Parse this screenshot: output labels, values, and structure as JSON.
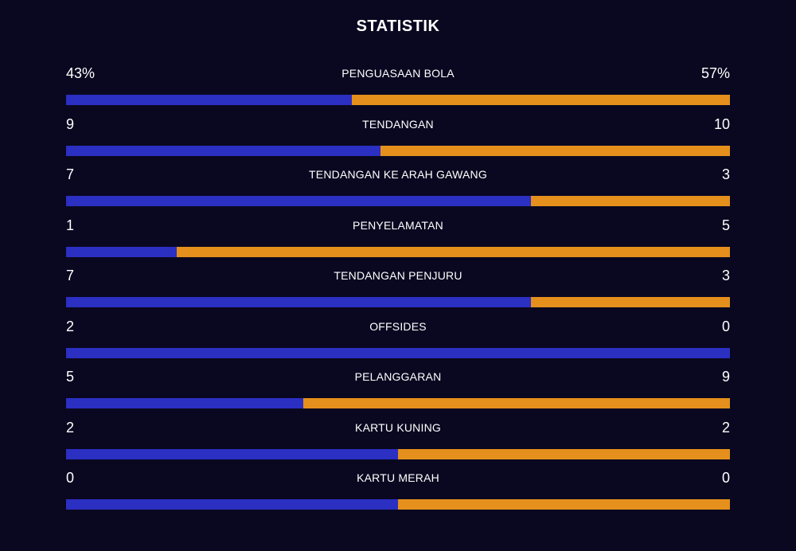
{
  "title": "STATISTIK",
  "colors": {
    "home": "#2b2fc2",
    "away": "#e5901c",
    "background": "#0a0820"
  },
  "stats": [
    {
      "label": "PENGUASAAN BOLA",
      "home": "43%",
      "away": "57%",
      "home_value": 43,
      "away_value": 57
    },
    {
      "label": "TENDANGAN",
      "home": "9",
      "away": "10",
      "home_value": 9,
      "away_value": 10
    },
    {
      "label": "TENDANGAN KE ARAH GAWANG",
      "home": "7",
      "away": "3",
      "home_value": 7,
      "away_value": 3
    },
    {
      "label": "PENYELAMATAN",
      "home": "1",
      "away": "5",
      "home_value": 1,
      "away_value": 5
    },
    {
      "label": "TENDANGAN PENJURU",
      "home": "7",
      "away": "3",
      "home_value": 7,
      "away_value": 3
    },
    {
      "label": "OFFSIDES",
      "home": "2",
      "away": "0",
      "home_value": 2,
      "away_value": 0
    },
    {
      "label": "PELANGGARAN",
      "home": "5",
      "away": "9",
      "home_value": 5,
      "away_value": 9
    },
    {
      "label": "KARTU KUNING",
      "home": "2",
      "away": "2",
      "home_value": 2,
      "away_value": 2
    },
    {
      "label": "KARTU MERAH",
      "home": "0",
      "away": "0",
      "home_value": 0,
      "away_value": 0
    }
  ]
}
